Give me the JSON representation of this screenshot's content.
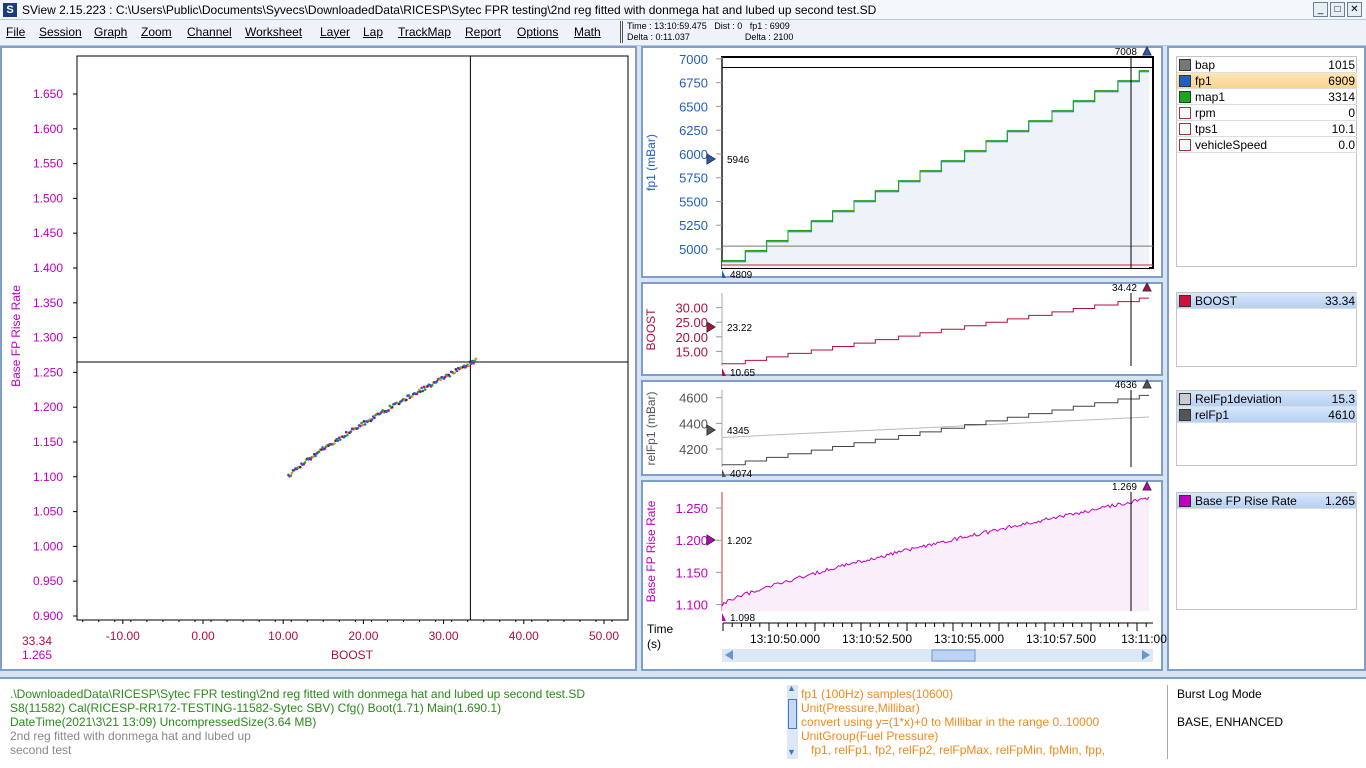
{
  "window": {
    "title": "SView 2.15.223  :  C:\\Users\\Public\\Documents\\Syvecs\\DownloadedData\\RICESP\\Sytec FPR testing\\2nd reg fitted with donmega hat and lubed up second test.SD",
    "logo": "S"
  },
  "menu": [
    "File",
    "Session",
    "Graph",
    "Zoom",
    "Channel",
    "Worksheet",
    "Layer",
    "Lap",
    "TrackMap",
    "Report",
    "Options",
    "Math"
  ],
  "readout": {
    "line1": "Time : 13:10:59.475   Dist : 0   fp1 : 6909",
    "line2": "Delta : 0:11.037                      Delta : 2100"
  },
  "scatter": {
    "ylabel": "Base FP Rise Rate",
    "xlabel": "BOOST",
    "yticks": [
      "1.650",
      "1.600",
      "1.550",
      "1.500",
      "1.450",
      "1.400",
      "1.350",
      "1.300",
      "1.250",
      "1.200",
      "1.150",
      "1.100",
      "1.050",
      "1.000",
      "0.950",
      "0.900"
    ],
    "xticks": [
      "-10.00",
      "0.00",
      "10.00",
      "20.00",
      "30.00",
      "40.00",
      "50.00"
    ],
    "cursor_x": "33.34",
    "cursor_y": "1.265",
    "color": "#c000c0"
  },
  "graphs": [
    {
      "ylabel": "fp1 (mBar)",
      "yticks": [
        "7000",
        "6750",
        "6500",
        "6250",
        "6000",
        "5750",
        "5500",
        "5250",
        "5000"
      ],
      "max": "7008",
      "min": "4809",
      "mark": "5946",
      "color": "#1f5fbf"
    },
    {
      "ylabel": "BOOST",
      "yticks": [
        "30.00",
        "25.00",
        "20.00",
        "15.00"
      ],
      "max": "34.42",
      "min": "10.65",
      "mark": "23.22",
      "color": "#b0103a"
    },
    {
      "ylabel": "relFp1 (mBar)",
      "yticks": [
        "4600",
        "4400",
        "4200"
      ],
      "max": "4636",
      "min": "4074",
      "mark": "4345",
      "color": "#555555"
    },
    {
      "ylabel": "Base FP Rise Rate",
      "yticks": [
        "1.250",
        "1.200",
        "1.150",
        "1.100"
      ],
      "max": "1.269",
      "min": "1.098",
      "mark": "1.202",
      "color": "#c000c0"
    }
  ],
  "time_axis": {
    "label": "Time",
    "unit": "(s)",
    "ticks": [
      "13:10:50.000",
      "13:10:52.500",
      "13:10:55.000",
      "13:10:57.500",
      "13:11:00"
    ]
  },
  "legend": {
    "group1": [
      {
        "name": "bap",
        "value": "1015",
        "color": "#777777"
      },
      {
        "name": "fp1",
        "value": "6909",
        "color": "#1f5fbf",
        "selected": true
      },
      {
        "name": "map1",
        "value": "3314",
        "color": "#1aa51a"
      },
      {
        "name": "rpm",
        "value": "0",
        "color": "#ffffff"
      },
      {
        "name": "tps1",
        "value": "10.1",
        "color": "#ffffff"
      },
      {
        "name": "vehicleSpeed",
        "value": "0.0",
        "color": "#ffffff"
      }
    ],
    "group2": [
      {
        "name": "BOOST",
        "value": "33.34",
        "color": "#d0103a"
      }
    ],
    "group3": [
      {
        "name": "RelFp1deviation",
        "value": "15.3",
        "color": "#cccccc"
      },
      {
        "name": "relFp1",
        "value": "4610",
        "color": "#555555"
      }
    ],
    "group4": [
      {
        "name": "Base FP Rise Rate",
        "value": "1.265",
        "color": "#c000c0"
      }
    ]
  },
  "info": {
    "left": [
      ".\\DownloadedData\\RICESP\\Sytec FPR testing\\2nd reg fitted with donmega hat and lubed up second test.SD",
      "S8(11582) Cal(RICESP-RR172-TESTING-11582-Sytec SBV) Cfg() Boot(1.71) Main(1.690.1)",
      "DateTime(2021\\3\\21 13:09) UncompressedSize(3.64 MB)",
      "2nd reg fitted with donmega hat and lubed up",
      "second test"
    ],
    "middle": [
      "fp1 (100Hz) samples(10600)",
      "Unit(Pressure,Millibar)",
      "convert using y=(1*x)+0 to Millibar in the range 0..10000",
      "UnitGroup(Fuel Pressure)",
      "   fp1, relFp1, fp2, relFp2, relFpMax, relFpMin, fpMin, fpp,"
    ],
    "right": [
      "Burst Log Mode",
      "BASE, ENHANCED"
    ]
  }
}
